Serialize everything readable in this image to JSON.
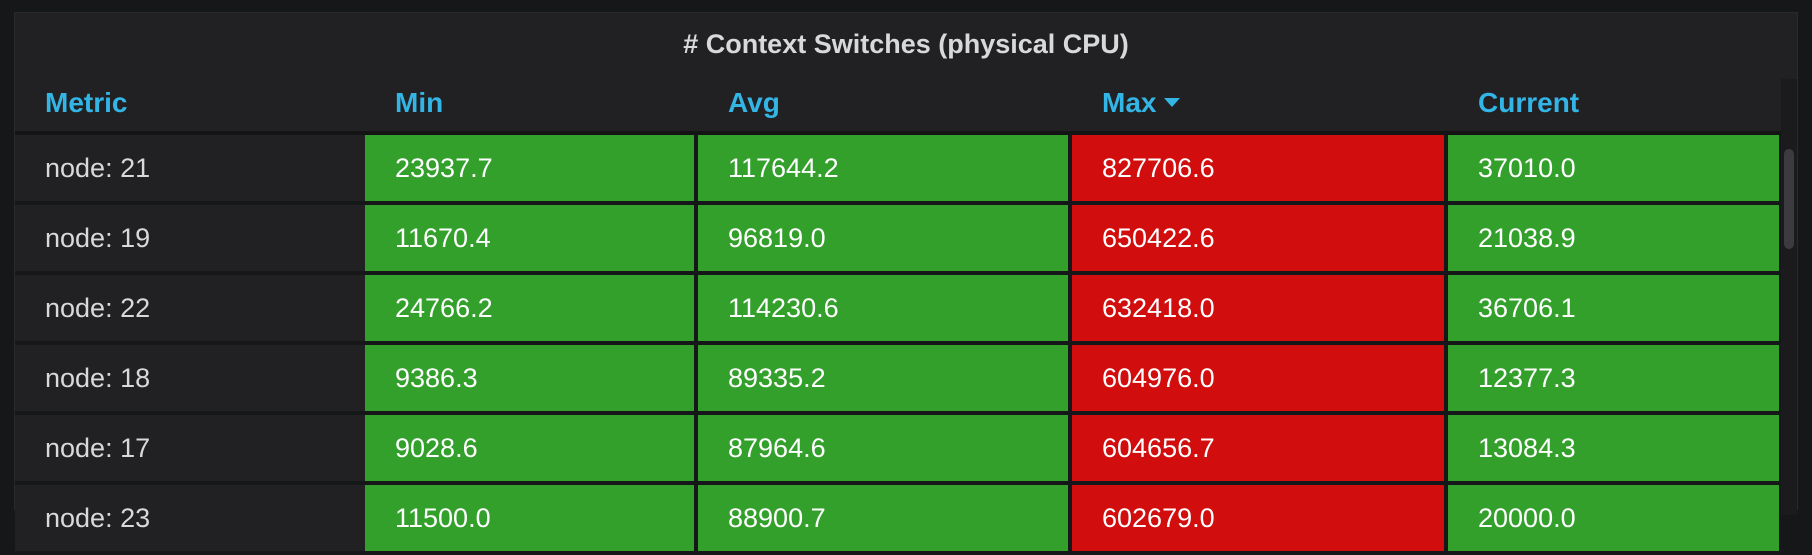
{
  "panel": {
    "title": "# Context Switches (physical CPU)"
  },
  "table": {
    "headers": [
      "Metric",
      "Min",
      "Avg",
      "Max",
      "Current"
    ],
    "sorted_column": "Max",
    "sort_direction": "descending",
    "colors": {
      "ok": "#33a02c",
      "critical": "#d20d0d",
      "header": "#33b5e5"
    },
    "rows": [
      {
        "metric": "node: 21",
        "min": "23937.7",
        "avg": "117644.2",
        "max": "827706.6",
        "current": "37010.0"
      },
      {
        "metric": "node: 19",
        "min": "11670.4",
        "avg": "96819.0",
        "max": "650422.6",
        "current": "21038.9"
      },
      {
        "metric": "node: 22",
        "min": "24766.2",
        "avg": "114230.6",
        "max": "632418.0",
        "current": "36706.1"
      },
      {
        "metric": "node: 18",
        "min": "9386.3",
        "avg": "89335.2",
        "max": "604976.0",
        "current": "12377.3"
      },
      {
        "metric": "node: 17",
        "min": "9028.6",
        "avg": "87964.6",
        "max": "604656.7",
        "current": "13084.3"
      },
      {
        "metric": "node: 23",
        "min": "11500.0",
        "avg": "88900.7",
        "max": "602679.0",
        "current": "20000.0"
      }
    ]
  }
}
